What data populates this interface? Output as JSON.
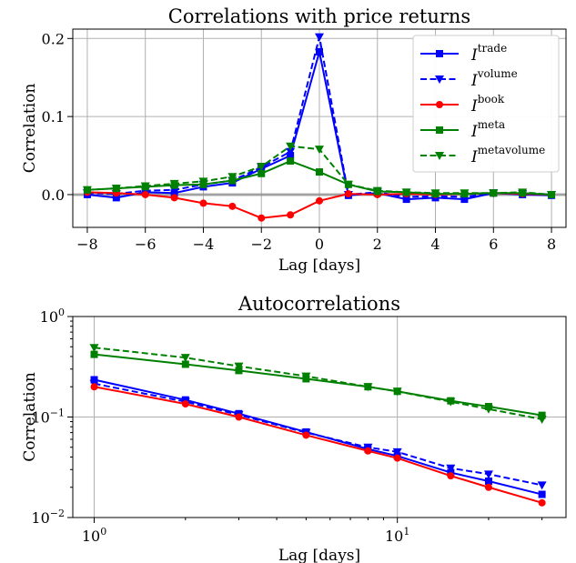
{
  "chart_data": [
    {
      "type": "line",
      "title": "Correlations with price returns",
      "xlabel": "Lag [days]",
      "ylabel": "Correlation",
      "xlim": [
        -8.5,
        8.5
      ],
      "ylim": [
        -0.042,
        0.212
      ],
      "xscale": "linear",
      "yscale": "linear",
      "grid": true,
      "legend": "top-right",
      "x_ticks": [
        -8,
        -6,
        -4,
        -2,
        0,
        2,
        4,
        6,
        8
      ],
      "x_tick_labels": [
        "−8",
        "−6",
        "−4",
        "−2",
        "0",
        "2",
        "4",
        "6",
        "8"
      ],
      "y_ticks": [
        0.0,
        0.1,
        0.2
      ],
      "y_tick_labels": [
        "0.0",
        "0.1",
        "0.2"
      ],
      "x": [
        -8,
        -7,
        -6,
        -5,
        -4,
        -3,
        -2,
        -1,
        0,
        1,
        2,
        3,
        4,
        5,
        6,
        7,
        8
      ],
      "series": [
        {
          "name": "I",
          "sup": "trade",
          "color": "#0000ff",
          "marker": "square",
          "dash": "solid",
          "values": [
            0.0,
            -0.004,
            0.003,
            0.002,
            0.01,
            0.015,
            0.033,
            0.05,
            0.183,
            -0.001,
            0.002,
            -0.006,
            -0.004,
            -0.006,
            0.002,
            0.0,
            -0.001
          ]
        },
        {
          "name": "I",
          "sup": "volume",
          "color": "#0000ff",
          "marker": "triangle-down",
          "dash": "dashed",
          "values": [
            0.002,
            0.001,
            0.005,
            0.006,
            0.013,
            0.018,
            0.035,
            0.055,
            0.202,
            0.0,
            0.003,
            -0.003,
            -0.002,
            -0.003,
            0.002,
            0.001,
            0.0
          ]
        },
        {
          "name": "I",
          "sup": "book",
          "color": "#ff0000",
          "marker": "circle",
          "dash": "solid",
          "values": [
            0.003,
            0.002,
            0.0,
            -0.004,
            -0.011,
            -0.015,
            -0.03,
            -0.026,
            -0.008,
            0.001,
            0.0,
            0.001,
            0.0,
            0.001,
            0.002,
            0.001,
            0.0
          ]
        },
        {
          "name": "I",
          "sup": "meta",
          "color": "#008000",
          "marker": "square",
          "dash": "solid",
          "values": [
            0.006,
            0.008,
            0.01,
            0.012,
            0.013,
            0.018,
            0.027,
            0.043,
            0.029,
            0.013,
            0.004,
            0.003,
            0.001,
            0.001,
            0.002,
            0.002,
            0.0
          ]
        },
        {
          "name": "I",
          "sup": "metavolume",
          "color": "#008000",
          "marker": "triangle-down",
          "dash": "dashed",
          "values": [
            0.006,
            0.008,
            0.011,
            0.014,
            0.017,
            0.023,
            0.036,
            0.062,
            0.058,
            0.013,
            0.005,
            0.003,
            0.002,
            0.002,
            0.002,
            0.003,
            0.0
          ]
        }
      ]
    },
    {
      "type": "line",
      "title": "Autocorrelations",
      "xlabel": "Lag [days]",
      "ylabel": "Correlation",
      "xlim": [
        0.85,
        36
      ],
      "ylim": [
        0.01,
        1.0
      ],
      "xscale": "log",
      "yscale": "log",
      "grid": true,
      "x_ticks": [
        1,
        10
      ],
      "x_tick_labels": [
        {
          "base": "10",
          "exp": "0"
        },
        {
          "base": "10",
          "exp": "1"
        }
      ],
      "y_ticks": [
        0.01,
        0.1,
        1
      ],
      "y_tick_labels": [
        {
          "base": "10",
          "exp": "−2"
        },
        {
          "base": "10",
          "exp": "−1"
        },
        {
          "base": "10",
          "exp": "0"
        }
      ],
      "x": [
        1,
        2,
        3,
        5,
        8,
        10,
        15,
        20,
        30
      ],
      "series": [
        {
          "name": "I trade",
          "color": "#0000ff",
          "marker": "square",
          "dash": "solid",
          "values": [
            0.235,
            0.148,
            0.108,
            0.071,
            0.048,
            0.041,
            0.028,
            0.023,
            0.017
          ]
        },
        {
          "name": "I volume",
          "color": "#0000ff",
          "marker": "triangle-down",
          "dash": "dashed",
          "values": [
            0.215,
            0.142,
            0.105,
            0.07,
            0.05,
            0.045,
            0.031,
            0.027,
            0.021
          ]
        },
        {
          "name": "I book",
          "color": "#ff0000",
          "marker": "circle",
          "dash": "solid",
          "values": [
            0.2,
            0.135,
            0.1,
            0.066,
            0.046,
            0.039,
            0.026,
            0.02,
            0.014
          ]
        },
        {
          "name": "I meta",
          "color": "#008000",
          "marker": "square",
          "dash": "solid",
          "values": [
            0.42,
            0.335,
            0.29,
            0.24,
            0.2,
            0.18,
            0.145,
            0.127,
            0.104
          ]
        },
        {
          "name": "I metavolume",
          "color": "#008000",
          "marker": "triangle-down",
          "dash": "dashed",
          "values": [
            0.49,
            0.39,
            0.32,
            0.255,
            0.2,
            0.18,
            0.142,
            0.12,
            0.095
          ]
        }
      ]
    }
  ]
}
